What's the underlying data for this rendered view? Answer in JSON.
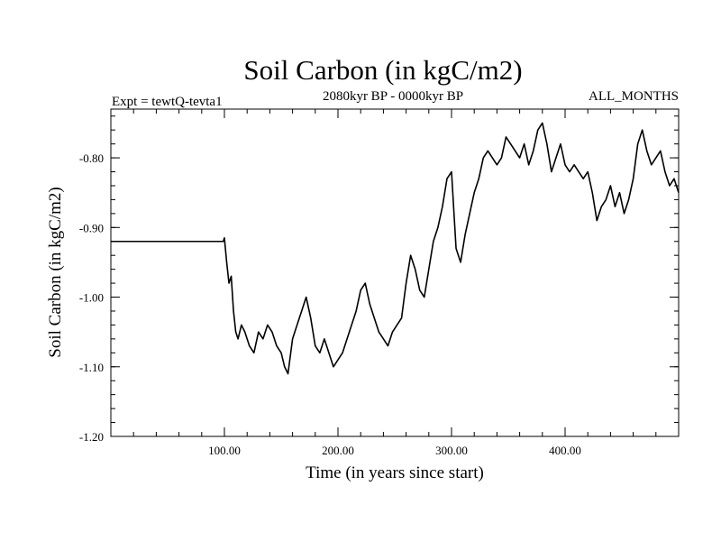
{
  "colors": {
    "line": "#000000",
    "background": "#ffffff",
    "axis": "#000000"
  },
  "chart_data": {
    "type": "line",
    "title": "Soil Carbon (in kgC/m2)",
    "subtitle_left": "Expt = tewtQ-tevta1",
    "subtitle_center": "2080kyr BP - 0000kyr BP",
    "subtitle_right": "ALL_MONTHS",
    "xlabel": "Time (in years since start)",
    "ylabel": "Soil Carbon (in kgC/m2)",
    "xlim": [
      0,
      500
    ],
    "ylim": [
      -1.2,
      -0.73
    ],
    "x_ticks": [
      100,
      200,
      300,
      400
    ],
    "x_tick_labels": [
      "100.00",
      "200.00",
      "300.00",
      "400.00"
    ],
    "y_ticks": [
      -1.2,
      -1.1,
      -1.0,
      -0.9,
      -0.8
    ],
    "y_tick_labels": [
      "-1.20",
      "-1.10",
      "-1.00",
      "-0.90",
      "-0.80"
    ],
    "x_minor_step": 20,
    "y_minor_step": 0.02,
    "grid": false,
    "series": [
      {
        "name": "Soil Carbon",
        "x": [
          0,
          99,
          100,
          102,
          104,
          106,
          108,
          110,
          112,
          115,
          118,
          122,
          126,
          130,
          134,
          138,
          142,
          146,
          150,
          153,
          156,
          160,
          164,
          168,
          172,
          176,
          180,
          184,
          188,
          192,
          196,
          200,
          204,
          208,
          212,
          216,
          220,
          224,
          228,
          232,
          236,
          240,
          244,
          248,
          252,
          256,
          260,
          264,
          268,
          272,
          276,
          280,
          284,
          288,
          292,
          296,
          300,
          304,
          308,
          312,
          316,
          320,
          324,
          328,
          332,
          336,
          340,
          344,
          348,
          352,
          356,
          360,
          364,
          368,
          372,
          376,
          380,
          384,
          388,
          392,
          396,
          400,
          404,
          408,
          412,
          416,
          420,
          424,
          428,
          432,
          436,
          440,
          444,
          448,
          452,
          456,
          460,
          464,
          468,
          472,
          476,
          480,
          484,
          488,
          492,
          496,
          500
        ],
        "values": [
          -0.92,
          -0.92,
          -0.915,
          -0.95,
          -0.98,
          -0.97,
          -1.02,
          -1.05,
          -1.06,
          -1.04,
          -1.05,
          -1.07,
          -1.08,
          -1.05,
          -1.06,
          -1.04,
          -1.05,
          -1.07,
          -1.08,
          -1.1,
          -1.11,
          -1.06,
          -1.04,
          -1.02,
          -1.0,
          -1.03,
          -1.07,
          -1.08,
          -1.06,
          -1.08,
          -1.1,
          -1.09,
          -1.08,
          -1.06,
          -1.04,
          -1.02,
          -0.99,
          -0.98,
          -1.01,
          -1.03,
          -1.05,
          -1.06,
          -1.07,
          -1.05,
          -1.04,
          -1.03,
          -0.98,
          -0.94,
          -0.96,
          -0.99,
          -1.0,
          -0.96,
          -0.92,
          -0.9,
          -0.87,
          -0.83,
          -0.82,
          -0.93,
          -0.95,
          -0.91,
          -0.88,
          -0.85,
          -0.83,
          -0.8,
          -0.79,
          -0.8,
          -0.81,
          -0.8,
          -0.77,
          -0.78,
          -0.79,
          -0.8,
          -0.78,
          -0.81,
          -0.79,
          -0.76,
          -0.75,
          -0.78,
          -0.82,
          -0.8,
          -0.78,
          -0.81,
          -0.82,
          -0.81,
          -0.82,
          -0.83,
          -0.82,
          -0.85,
          -0.89,
          -0.87,
          -0.86,
          -0.84,
          -0.87,
          -0.85,
          -0.88,
          -0.86,
          -0.83,
          -0.78,
          -0.76,
          -0.79,
          -0.81,
          -0.8,
          -0.79,
          -0.82,
          -0.84,
          -0.83,
          -0.85
        ]
      }
    ]
  }
}
